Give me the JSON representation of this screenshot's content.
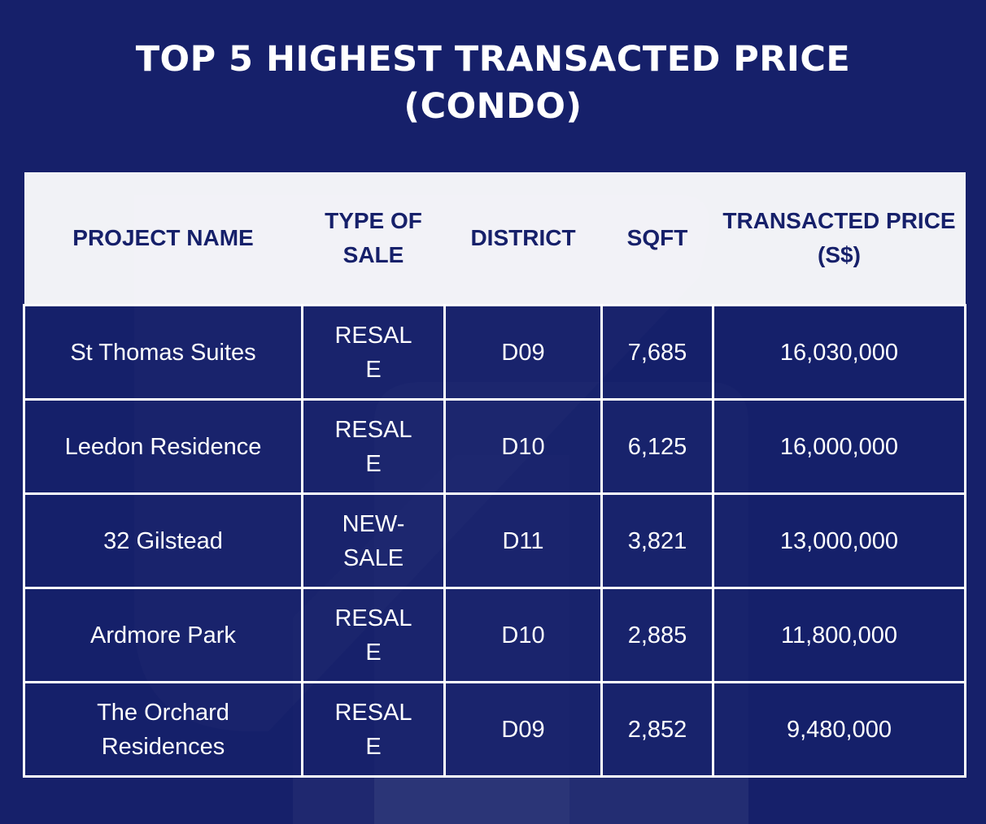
{
  "title": {
    "line1": "TOP 5 HIGHEST TRANSACTED PRICE",
    "line2": "(CONDO)"
  },
  "table": {
    "headers": {
      "project_name": "PROJECT NAME",
      "type_of_sale": "TYPE OF SALE",
      "district": "DISTRICT",
      "sqft": "SQFT",
      "transacted_price": "TRANSACTED PRICE (S$)"
    },
    "rows": [
      {
        "project_name": "St Thomas Suites",
        "type_of_sale": "RESALE",
        "district": "D09",
        "sqft": "7,685",
        "transacted_price": "16,030,000"
      },
      {
        "project_name": "Leedon Residence",
        "type_of_sale": "RESALE",
        "district": "D10",
        "sqft": "6,125",
        "transacted_price": "16,000,000"
      },
      {
        "project_name": "32 Gilstead",
        "type_of_sale": "NEW-SALE",
        "district": "D11",
        "sqft": "3,821",
        "transacted_price": "13,000,000"
      },
      {
        "project_name": "Ardmore Park",
        "type_of_sale": "RESALE",
        "district": "D10",
        "sqft": "2,885",
        "transacted_price": "11,800,000"
      },
      {
        "project_name": "The Orchard Residences",
        "type_of_sale": "RESALE",
        "district": "D09",
        "sqft": "2,852",
        "transacted_price": "9,480,000"
      }
    ]
  },
  "colors": {
    "background": "#16206a",
    "header_background": "#ffffff",
    "header_text": "#16206a",
    "body_text": "#ffffff",
    "grid_lines": "#ffffff"
  },
  "icons": {
    "watermark": "logo-watermark-icon"
  }
}
